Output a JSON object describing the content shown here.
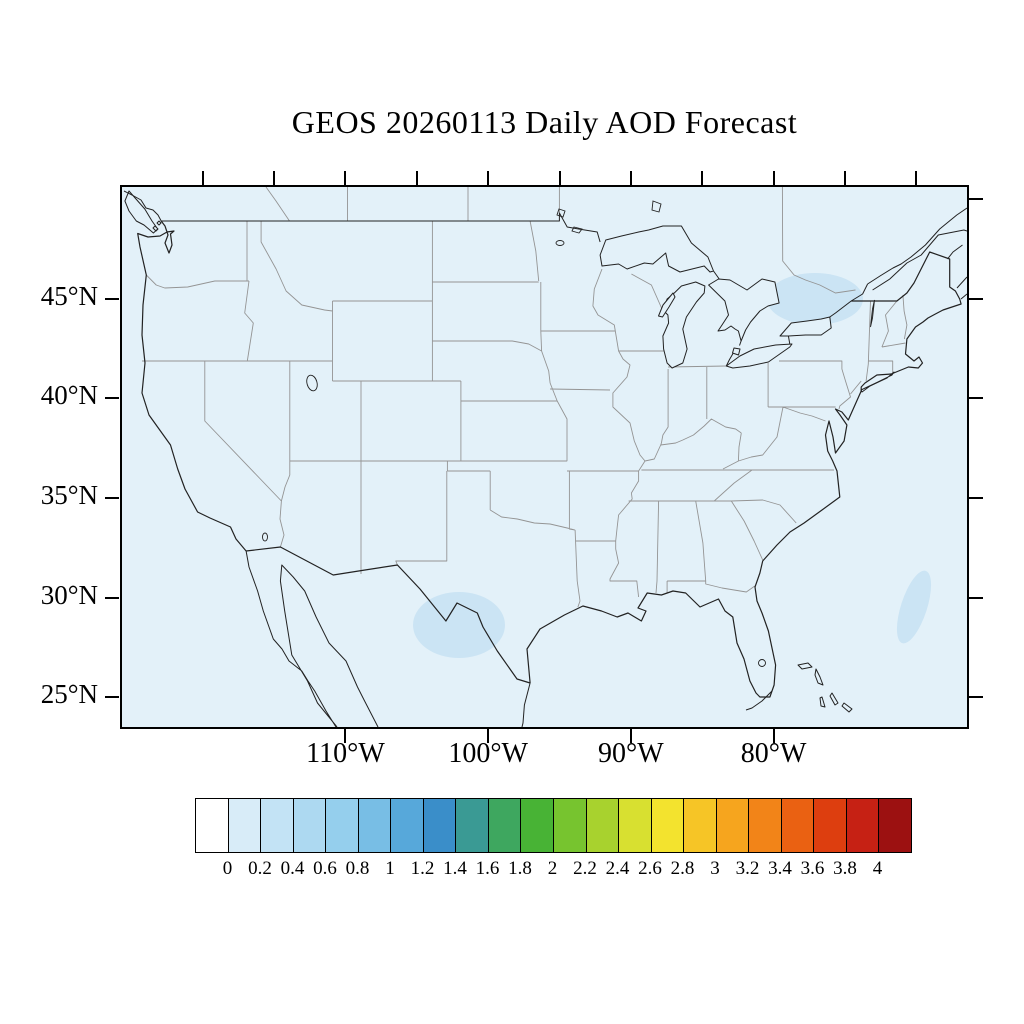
{
  "title": "GEOS 20260113 Daily AOD Forecast",
  "map": {
    "y_axis": {
      "labels": [
        {
          "text": "45°N",
          "lat": 45
        },
        {
          "text": "40°N",
          "lat": 40
        },
        {
          "text": "35°N",
          "lat": 35
        },
        {
          "text": "30°N",
          "lat": 30
        },
        {
          "text": "25°N",
          "lat": 25
        }
      ],
      "right_tick_lats": [
        50,
        45,
        40,
        35,
        30,
        25
      ]
    },
    "x_axis": {
      "labels": [
        {
          "text": "110°W",
          "lon": -110
        },
        {
          "text": "100°W",
          "lon": -100
        },
        {
          "text": "90°W",
          "lon": -90
        },
        {
          "text": "80°W",
          "lon": -80
        }
      ],
      "top_tick_lons": [
        -120,
        -115,
        -110,
        -105,
        -100,
        -95,
        -90,
        -85,
        -80,
        -75,
        -70
      ]
    },
    "region": "Continental United States"
  },
  "colorbar": {
    "tick_labels": [
      "0",
      "0.2",
      "0.4",
      "0.6",
      "0.8",
      "1",
      "1.2",
      "1.4",
      "1.6",
      "1.8",
      "2",
      "2.2",
      "2.4",
      "2.6",
      "2.8",
      "3",
      "3.2",
      "3.4",
      "3.6",
      "3.8",
      "4"
    ],
    "colors": [
      "#ffffff",
      "#d8ecf8",
      "#c3e3f5",
      "#add9f1",
      "#95cfed",
      "#78bee5",
      "#57a8da",
      "#3a8ec9",
      "#3a9a94",
      "#3ea75f",
      "#48b335",
      "#77c42f",
      "#a8d22e",
      "#d8e030",
      "#f3e32e",
      "#f6c526",
      "#f6a51e",
      "#f28418",
      "#ea6112",
      "#dd3e0f",
      "#c62114",
      "#9c1111"
    ]
  },
  "colors": {
    "background": "#ffffff",
    "ocean": "#e3f1f9",
    "coastline": "#222222",
    "state_border": "#949494",
    "aod_light": "#cbe4f4",
    "frame": "#000000",
    "text": "#000000"
  },
  "aod_patches": [
    {
      "region": "southern-texas",
      "approx_value": "0.1-0.2"
    },
    {
      "region": "lake-ontario-area",
      "approx_value": "0.1-0.2"
    },
    {
      "region": "western-atlantic",
      "approx_value": "0.1"
    }
  ]
}
